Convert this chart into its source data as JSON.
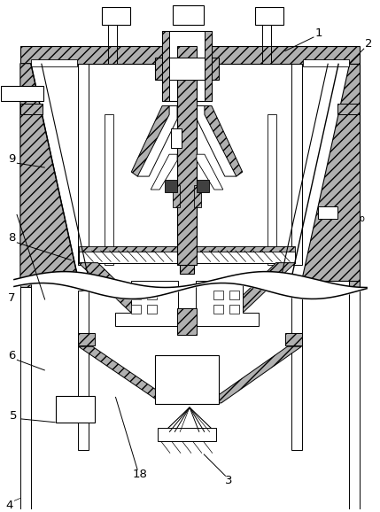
{
  "bg_color": "#ffffff",
  "line_color": "#000000",
  "lw": 0.8
}
